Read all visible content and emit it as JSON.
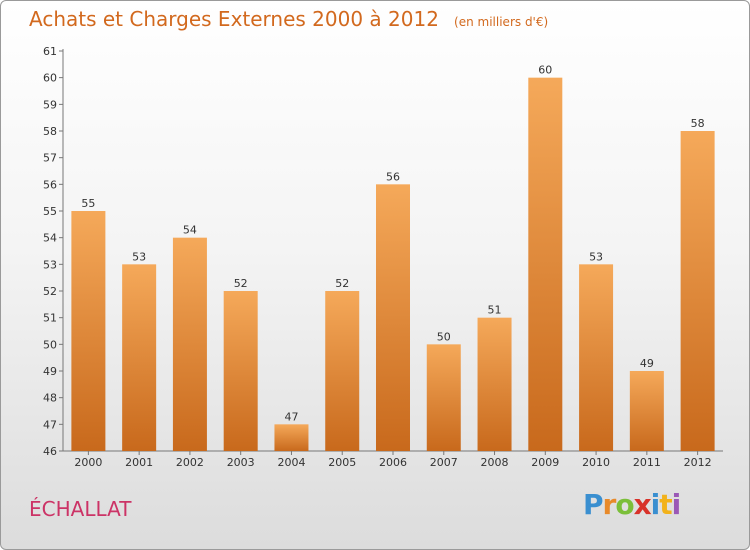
{
  "title": "Achats et Charges Externes 2000 à 2012",
  "subtitle": "(en milliers d'€)",
  "town": "ÉCHALLAT",
  "logo": {
    "p": "P",
    "r": "r",
    "o": "o",
    "x": "x",
    "i": "i",
    "t": "t",
    "i2": "i"
  },
  "colors": {
    "bar_top": "#f5a95a",
    "bar_bottom": "#c8691c",
    "title": "#d2691e",
    "town": "#cc3366"
  },
  "chart_data": {
    "type": "bar",
    "title": "Achats et Charges Externes 2000 à 2012",
    "subtitle": "(en milliers d'€)",
    "xlabel": "",
    "ylabel": "",
    "categories": [
      "2000",
      "2001",
      "2002",
      "2003",
      "2004",
      "2005",
      "2006",
      "2007",
      "2008",
      "2009",
      "2010",
      "2011",
      "2012"
    ],
    "values": [
      55,
      53,
      54,
      52,
      47,
      52,
      56,
      50,
      51,
      60,
      53,
      49,
      58
    ],
    "ylim": [
      46,
      61
    ],
    "yticks": [
      46,
      47,
      48,
      49,
      50,
      51,
      52,
      53,
      54,
      55,
      56,
      57,
      58,
      59,
      60,
      61
    ],
    "grid": false
  }
}
